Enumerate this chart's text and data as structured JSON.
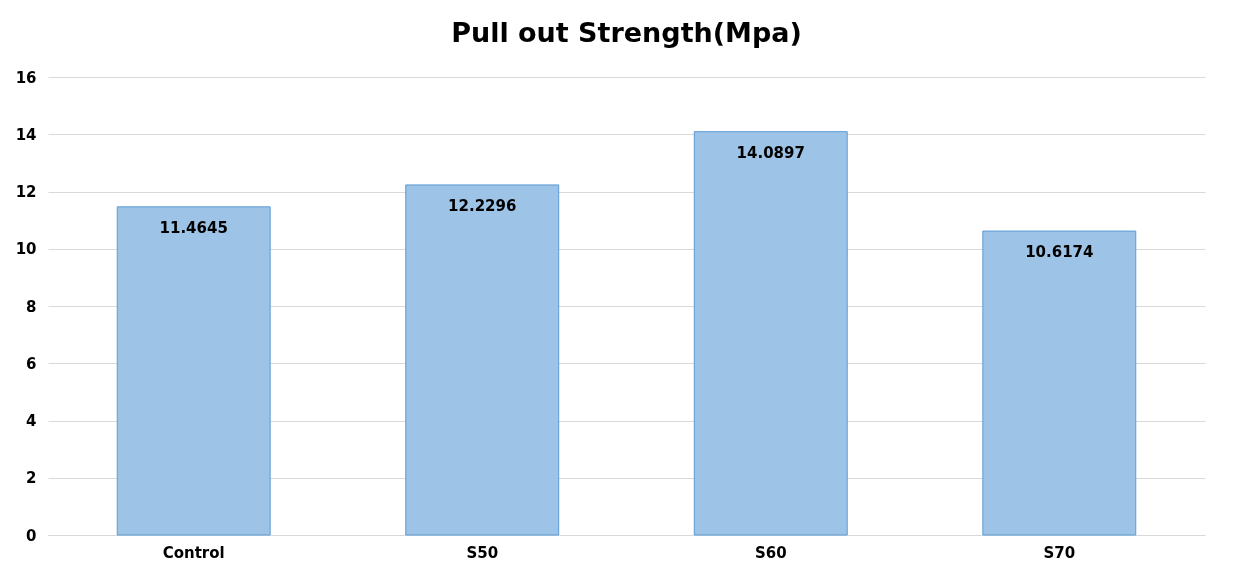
{
  "chart_data": {
    "type": "bar",
    "title": "Pull out Strength(Mpa)",
    "categories": [
      "Control",
      "S50",
      "S60",
      "S70"
    ],
    "values": [
      11.4645,
      12.2296,
      14.0897,
      10.6174
    ],
    "color": "#9dc3e6",
    "ylim": [
      0,
      16
    ],
    "yticks": [
      0,
      2,
      4,
      6,
      8,
      10,
      12,
      14,
      16
    ],
    "grid": "y",
    "data_labels": true
  }
}
